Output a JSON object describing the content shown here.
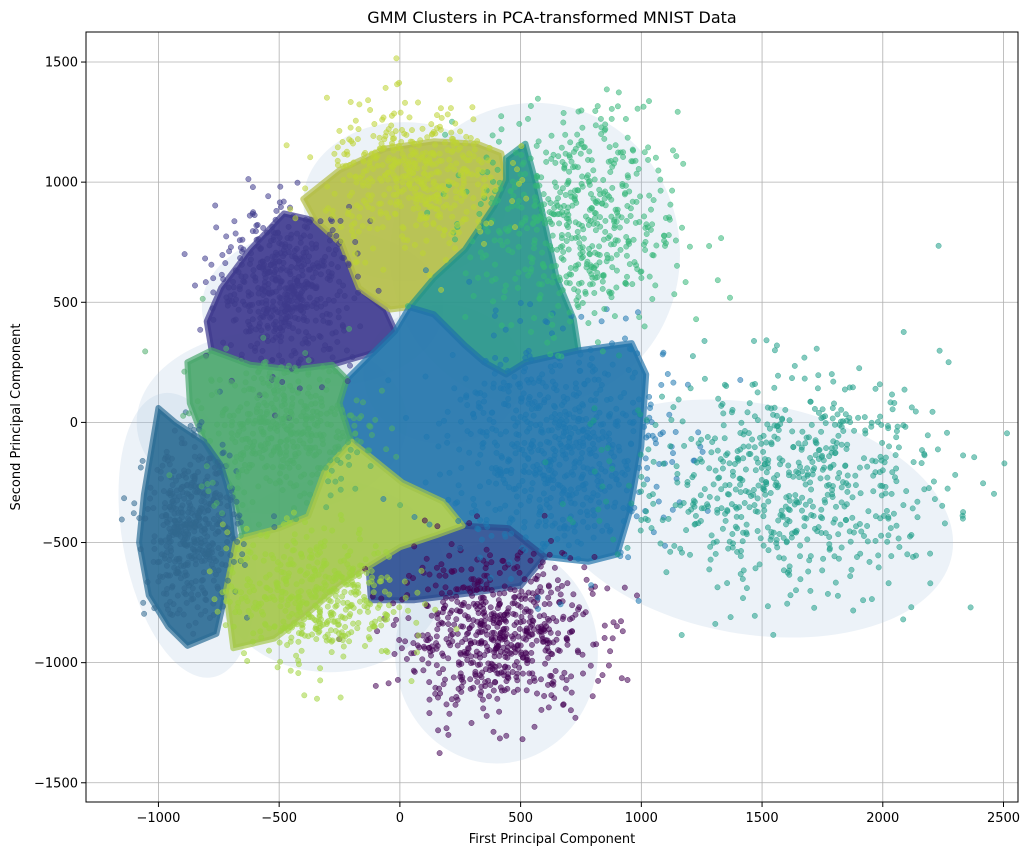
{
  "chart_data": {
    "type": "scatter",
    "title": "GMM Clusters in PCA-transformed MNIST Data",
    "xlabel": "First Principal Component",
    "ylabel": "Second Principal Component",
    "xlim": [
      -1300,
      2560
    ],
    "ylim": [
      -1580,
      1625
    ],
    "xticks": [
      -1000,
      -500,
      0,
      500,
      1000,
      1500,
      2000,
      2500
    ],
    "yticks": [
      -1500,
      -1000,
      -500,
      0,
      500,
      1000,
      1500
    ],
    "xtick_labels": [
      "−1000",
      "−500",
      "0",
      "500",
      "1000",
      "1500",
      "2000",
      "2500"
    ],
    "ytick_labels": [
      "−1500",
      "−1000",
      "−500",
      "0",
      "500",
      "1000",
      "1500"
    ],
    "grid": true,
    "ellipse_color": "#a8c4e0",
    "ellipse_opacity": 0.22,
    "clusters": [
      {
        "id": 0,
        "color": "#440154",
        "mean": [
          400,
          -880
        ],
        "spread": [
          200,
          165
        ],
        "count": 650,
        "ellipse": {
          "center": [
            400,
            -960
          ],
          "rx": 420,
          "ry": 460,
          "angle": 0
        }
      },
      {
        "id": 1,
        "color": "#3e3a8c",
        "mean": [
          -470,
          560
        ],
        "spread": [
          140,
          160
        ],
        "count": 500,
        "ellipse": {
          "center": [
            -320,
            480
          ],
          "rx": 500,
          "ry": 330,
          "angle": 0
        }
      },
      {
        "id": 2,
        "color": "#31688e",
        "mean": [
          -860,
          -450
        ],
        "spread": [
          95,
          175
        ],
        "count": 450,
        "ellipse": {
          "center": [
            -880,
            -470
          ],
          "rx": 270,
          "ry": 600,
          "angle": 10
        }
      },
      {
        "id": 3,
        "color": "#1f78b0",
        "mean": [
          650,
          -100
        ],
        "spread": [
          230,
          230
        ],
        "count": 650,
        "ellipse": {
          "center": [
            180,
            200
          ],
          "rx": 330,
          "ry": 290,
          "angle": 0
        }
      },
      {
        "id": 4,
        "color": "#1f9e89",
        "mean": [
          1600,
          -250
        ],
        "spread": [
          330,
          230
        ],
        "count": 650,
        "ellipse": {
          "center": [
            1450,
            -400
          ],
          "rx": 850,
          "ry": 480,
          "angle": -10
        }
      },
      {
        "id": 5,
        "color": "#35b779",
        "mean": [
          730,
          830
        ],
        "spread": [
          210,
          230
        ],
        "count": 550,
        "ellipse": {
          "center": [
            560,
            700
          ],
          "rx": 600,
          "ry": 630,
          "angle": 0
        }
      },
      {
        "id": 6,
        "color": "#4ead6c",
        "mean": [
          -480,
          -20
        ],
        "spread": [
          170,
          150
        ],
        "count": 400,
        "ellipse": {
          "center": [
            -530,
            0
          ],
          "rx": 560,
          "ry": 380,
          "angle": 0
        }
      },
      {
        "id": 7,
        "color": "#a0d43d",
        "mean": [
          -360,
          -720
        ],
        "spread": [
          180,
          140
        ],
        "count": 450,
        "ellipse": {
          "center": [
            -290,
            -640
          ],
          "rx": 480,
          "ry": 400,
          "angle": 0
        }
      },
      {
        "id": 8,
        "color": "#bdd433",
        "mean": [
          60,
          1020
        ],
        "spread": [
          180,
          150
        ],
        "count": 450,
        "ellipse": {
          "center": [
            20,
            920
          ],
          "rx": 420,
          "ry": 330,
          "angle": 0
        }
      }
    ],
    "fill_regions": [
      {
        "cluster": 1,
        "color": "#3f3b8f",
        "polygon": [
          [
            -480,
            870
          ],
          [
            -350,
            840
          ],
          [
            -240,
            740
          ],
          [
            -170,
            560
          ],
          [
            -60,
            470
          ],
          [
            -20,
            380
          ],
          [
            -110,
            290
          ],
          [
            -280,
            240
          ],
          [
            -440,
            220
          ],
          [
            -620,
            240
          ],
          [
            -780,
            300
          ],
          [
            -800,
            420
          ],
          [
            -740,
            560
          ],
          [
            -620,
            720
          ]
        ]
      },
      {
        "cluster": 8,
        "color": "#b5bf49",
        "polygon": [
          [
            -400,
            930
          ],
          [
            -250,
            1050
          ],
          [
            -60,
            1140
          ],
          [
            140,
            1170
          ],
          [
            320,
            1160
          ],
          [
            420,
            1120
          ],
          [
            440,
            1010
          ],
          [
            390,
            900
          ],
          [
            270,
            720
          ],
          [
            140,
            600
          ],
          [
            40,
            480
          ],
          [
            -40,
            470
          ],
          [
            -170,
            560
          ],
          [
            -240,
            740
          ],
          [
            -350,
            840
          ]
        ]
      },
      {
        "cluster": 5,
        "color": "#27958a",
        "polygon": [
          [
            440,
            1100
          ],
          [
            520,
            1160
          ],
          [
            560,
            1010
          ],
          [
            600,
            830
          ],
          [
            650,
            600
          ],
          [
            720,
            430
          ],
          [
            740,
            300
          ],
          [
            520,
            250
          ],
          [
            440,
            200
          ],
          [
            350,
            250
          ],
          [
            270,
            320
          ],
          [
            140,
            450
          ],
          [
            40,
            480
          ],
          [
            140,
            600
          ],
          [
            270,
            720
          ],
          [
            390,
            900
          ],
          [
            440,
            1010
          ]
        ]
      },
      {
        "cluster": 3,
        "color": "#2375ab",
        "polygon": [
          [
            -110,
            290
          ],
          [
            -20,
            380
          ],
          [
            40,
            480
          ],
          [
            140,
            450
          ],
          [
            270,
            320
          ],
          [
            350,
            250
          ],
          [
            440,
            200
          ],
          [
            520,
            250
          ],
          [
            740,
            300
          ],
          [
            960,
            330
          ],
          [
            1020,
            200
          ],
          [
            1000,
            -100
          ],
          [
            950,
            -380
          ],
          [
            900,
            -550
          ],
          [
            780,
            -580
          ],
          [
            600,
            -560
          ],
          [
            450,
            -440
          ],
          [
            260,
            -430
          ],
          [
            180,
            -330
          ],
          [
            10,
            -250
          ],
          [
            -200,
            -80
          ],
          [
            -250,
            80
          ],
          [
            -220,
            180
          ]
        ]
      },
      {
        "cluster": 0,
        "color": "#2d4f92",
        "polygon": [
          [
            -130,
            -600
          ],
          [
            0,
            -520
          ],
          [
            150,
            -470
          ],
          [
            260,
            -430
          ],
          [
            450,
            -440
          ],
          [
            600,
            -560
          ],
          [
            500,
            -680
          ],
          [
            300,
            -710
          ],
          [
            60,
            -740
          ],
          [
            -120,
            -740
          ]
        ]
      },
      {
        "cluster": 6,
        "color": "#4ca86e",
        "polygon": [
          [
            -880,
            250
          ],
          [
            -780,
            300
          ],
          [
            -620,
            240
          ],
          [
            -440,
            220
          ],
          [
            -280,
            240
          ],
          [
            -220,
            180
          ],
          [
            -250,
            80
          ],
          [
            -200,
            -80
          ],
          [
            -310,
            -200
          ],
          [
            -380,
            -390
          ],
          [
            -500,
            -440
          ],
          [
            -650,
            -480
          ],
          [
            -700,
            -270
          ],
          [
            -810,
            -80
          ],
          [
            -870,
            80
          ]
        ]
      },
      {
        "cluster": 2,
        "color": "#2c6d95",
        "polygon": [
          [
            -1000,
            60
          ],
          [
            -930,
            0
          ],
          [
            -810,
            -80
          ],
          [
            -740,
            -180
          ],
          [
            -700,
            -320
          ],
          [
            -680,
            -500
          ],
          [
            -720,
            -700
          ],
          [
            -760,
            -880
          ],
          [
            -880,
            -930
          ],
          [
            -960,
            -850
          ],
          [
            -1040,
            -720
          ],
          [
            -1080,
            -500
          ],
          [
            -1060,
            -300
          ]
        ]
      },
      {
        "cluster": 7,
        "color": "#a5c84c",
        "polygon": [
          [
            -680,
            -500
          ],
          [
            -650,
            -480
          ],
          [
            -500,
            -440
          ],
          [
            -380,
            -390
          ],
          [
            -310,
            -200
          ],
          [
            -200,
            -80
          ],
          [
            10,
            -250
          ],
          [
            180,
            -330
          ],
          [
            260,
            -430
          ],
          [
            150,
            -470
          ],
          [
            0,
            -520
          ],
          [
            -130,
            -600
          ],
          [
            -250,
            -680
          ],
          [
            -400,
            -810
          ],
          [
            -520,
            -900
          ],
          [
            -690,
            -940
          ],
          [
            -720,
            -700
          ]
        ]
      }
    ]
  }
}
